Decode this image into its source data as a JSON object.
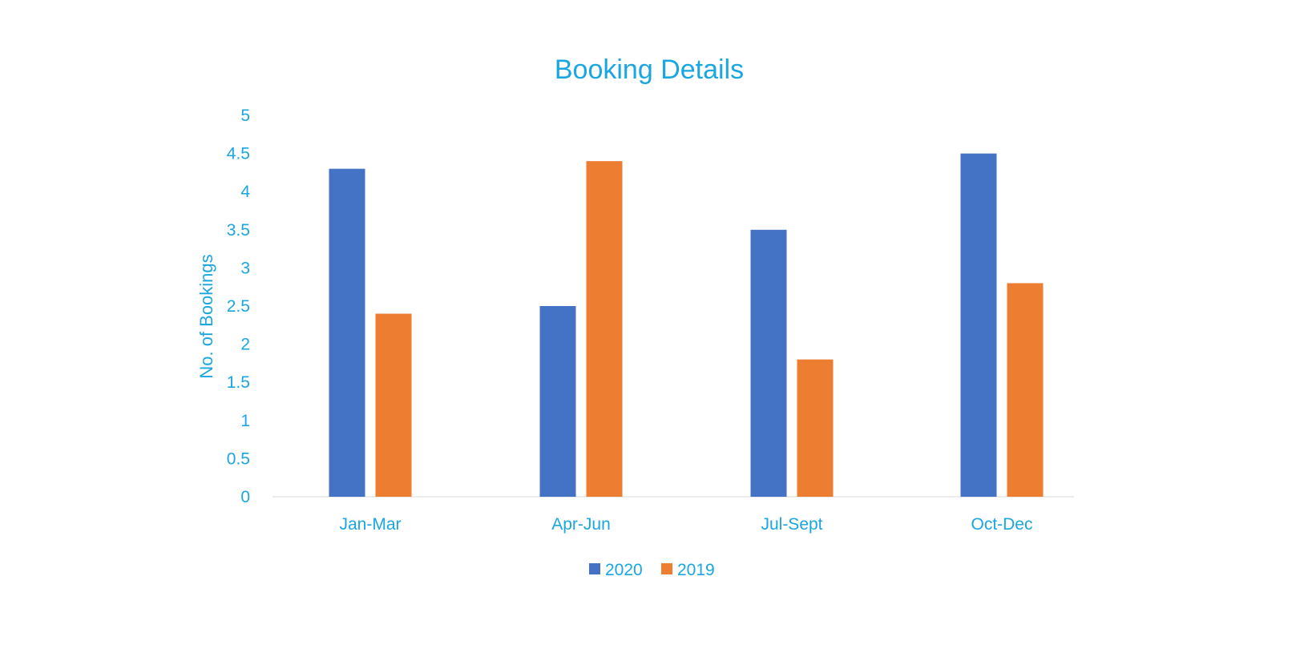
{
  "chart_data": {
    "type": "bar",
    "title": "Booking Details",
    "xlabel": "",
    "ylabel": "No. of Bookings",
    "categories": [
      "Jan-Mar",
      "Apr-Jun",
      "Jul-Sept",
      "Oct-Dec"
    ],
    "series": [
      {
        "name": "2020",
        "color": "#4472c4",
        "values": [
          4.3,
          2.5,
          3.5,
          4.5
        ]
      },
      {
        "name": "2019",
        "color": "#ed7d31",
        "values": [
          2.4,
          4.4,
          1.8,
          2.8
        ]
      }
    ],
    "ylim": [
      0,
      5
    ],
    "yticks": [
      "0",
      "0.5",
      "1",
      "1.5",
      "2",
      "2.5",
      "3",
      "3.5",
      "4",
      "4.5",
      "5"
    ],
    "grid": false,
    "legend_position": "bottom"
  }
}
